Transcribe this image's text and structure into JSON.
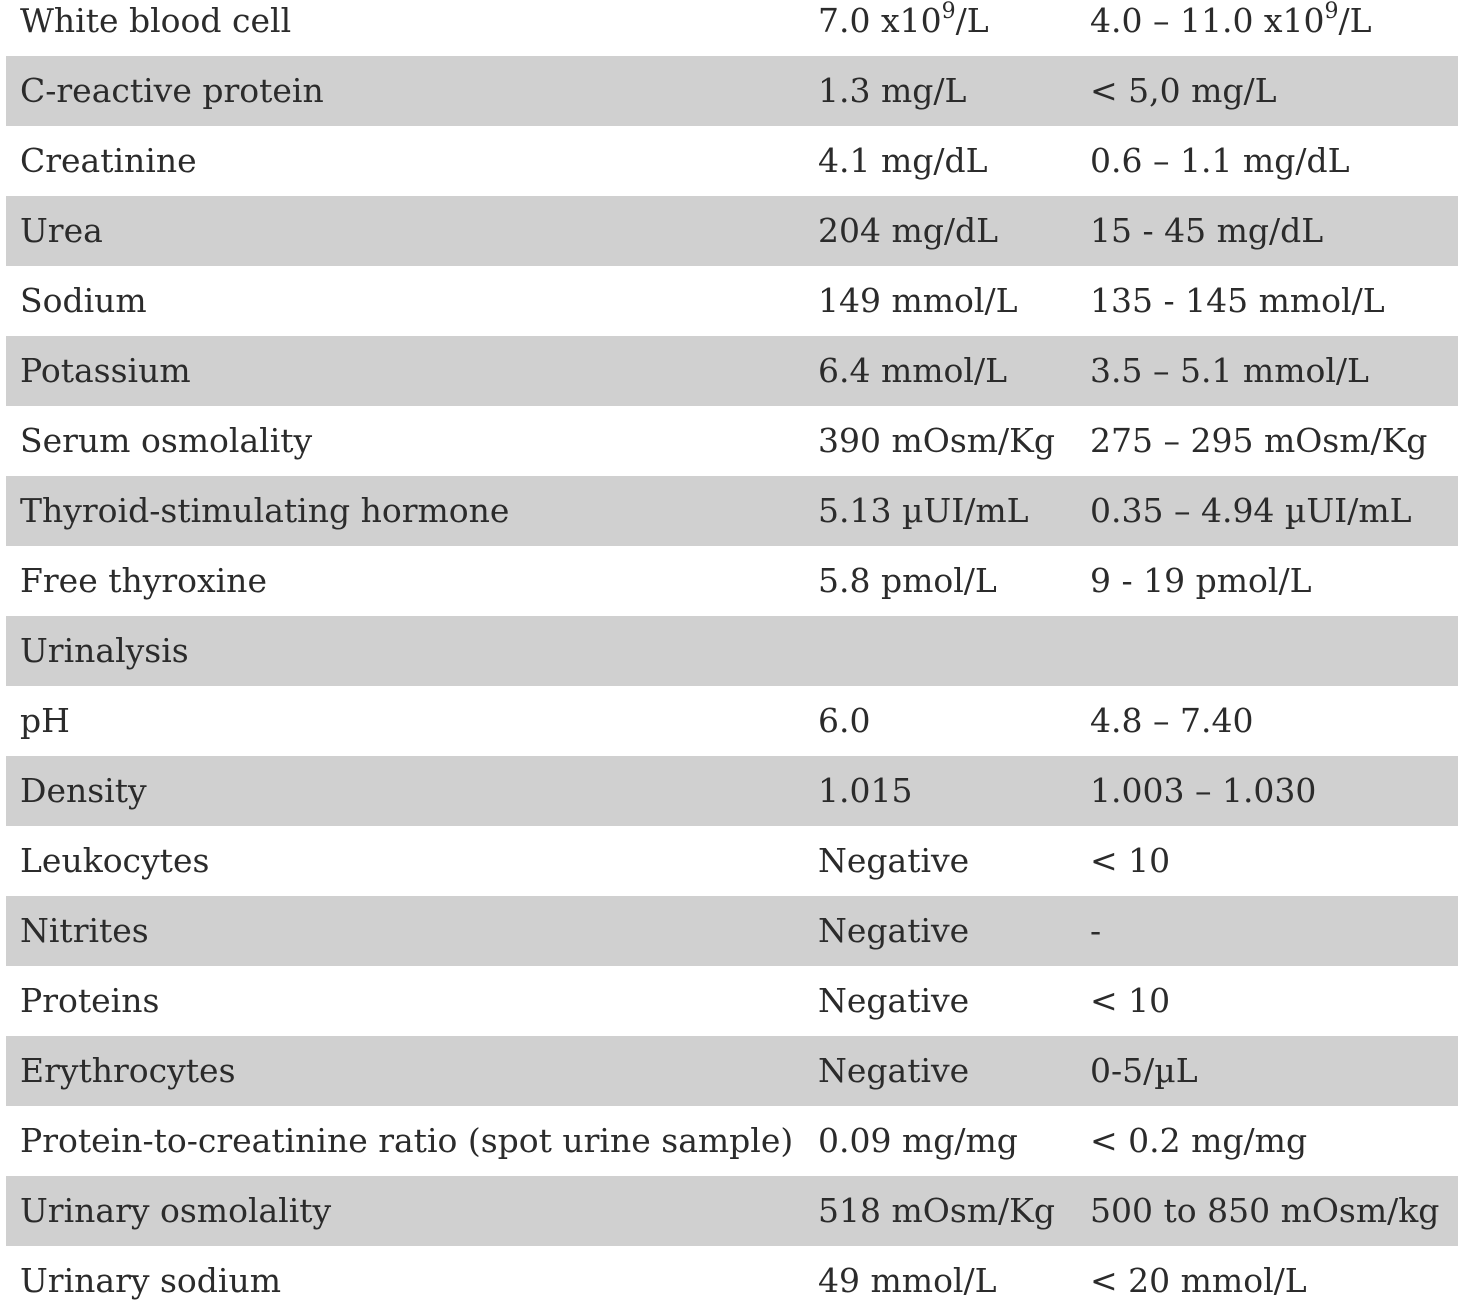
{
  "table": {
    "rows": [
      {
        "test": "White blood cell",
        "result": "7.0 x10",
        "result_sup": "9",
        "result_suffix": "/L",
        "reference": "4.0 – 11.0 x10",
        "reference_sup": "9",
        "reference_suffix": "/L",
        "shaded": false
      },
      {
        "test": "C-reactive protein",
        "result": "1.3 mg/L",
        "reference": "< 5,0 mg/L",
        "shaded": true
      },
      {
        "test": "Creatinine",
        "result": "4.1 mg/dL",
        "reference": "0.6 – 1.1 mg/dL",
        "shaded": false
      },
      {
        "test": "Urea",
        "result": "204 mg/dL",
        "reference": "15 - 45 mg/dL",
        "shaded": true
      },
      {
        "test": "Sodium",
        "result": "149 mmol/L",
        "reference": "135 - 145 mmol/L",
        "shaded": false
      },
      {
        "test": "Potassium",
        "result": "6.4 mmol/L",
        "reference": "3.5 – 5.1 mmol/L",
        "shaded": true
      },
      {
        "test": "Serum osmolality",
        "result": "390 mOsm/Kg",
        "reference": "275 – 295 mOsm/Kg",
        "shaded": false
      },
      {
        "test": "Thyroid-stimulating hormone",
        "result": "5.13 µUI/mL",
        "reference": "0.35 – 4.94 µUI/mL",
        "shaded": true
      },
      {
        "test": "Free thyroxine",
        "result": "5.8 pmol/L",
        "reference": "9 - 19 pmol/L",
        "shaded": false
      },
      {
        "test": "Urinalysis",
        "result": "",
        "reference": "",
        "shaded": true
      },
      {
        "test": "pH",
        "result": "6.0",
        "reference": "4.8 – 7.40",
        "shaded": false
      },
      {
        "test": "Density",
        "result": "1.015",
        "reference": "1.003 – 1.030",
        "shaded": true
      },
      {
        "test": "Leukocytes",
        "result": "Negative",
        "reference": "< 10",
        "shaded": false
      },
      {
        "test": "Nitrites",
        "result": "Negative",
        "reference": "-",
        "shaded": true
      },
      {
        "test": "Proteins",
        "result": "Negative",
        "reference": "< 10",
        "shaded": false
      },
      {
        "test": "Erythrocytes",
        "result": "Negative",
        "reference": "0-5/µL",
        "shaded": true
      },
      {
        "test": "Protein-to-creatinine ratio (spot urine sample)",
        "result": "0.09 mg/mg",
        "reference": "< 0.2 mg/mg",
        "shaded": false
      },
      {
        "test": "Urinary osmolality",
        "result": "518 mOsm/Kg",
        "reference": "500 to 850 mOsm/kg",
        "shaded": true
      },
      {
        "test": "Urinary sodium",
        "result": "49 mmol/L",
        "reference": "< 20 mmol/L",
        "shaded": false
      }
    ]
  }
}
